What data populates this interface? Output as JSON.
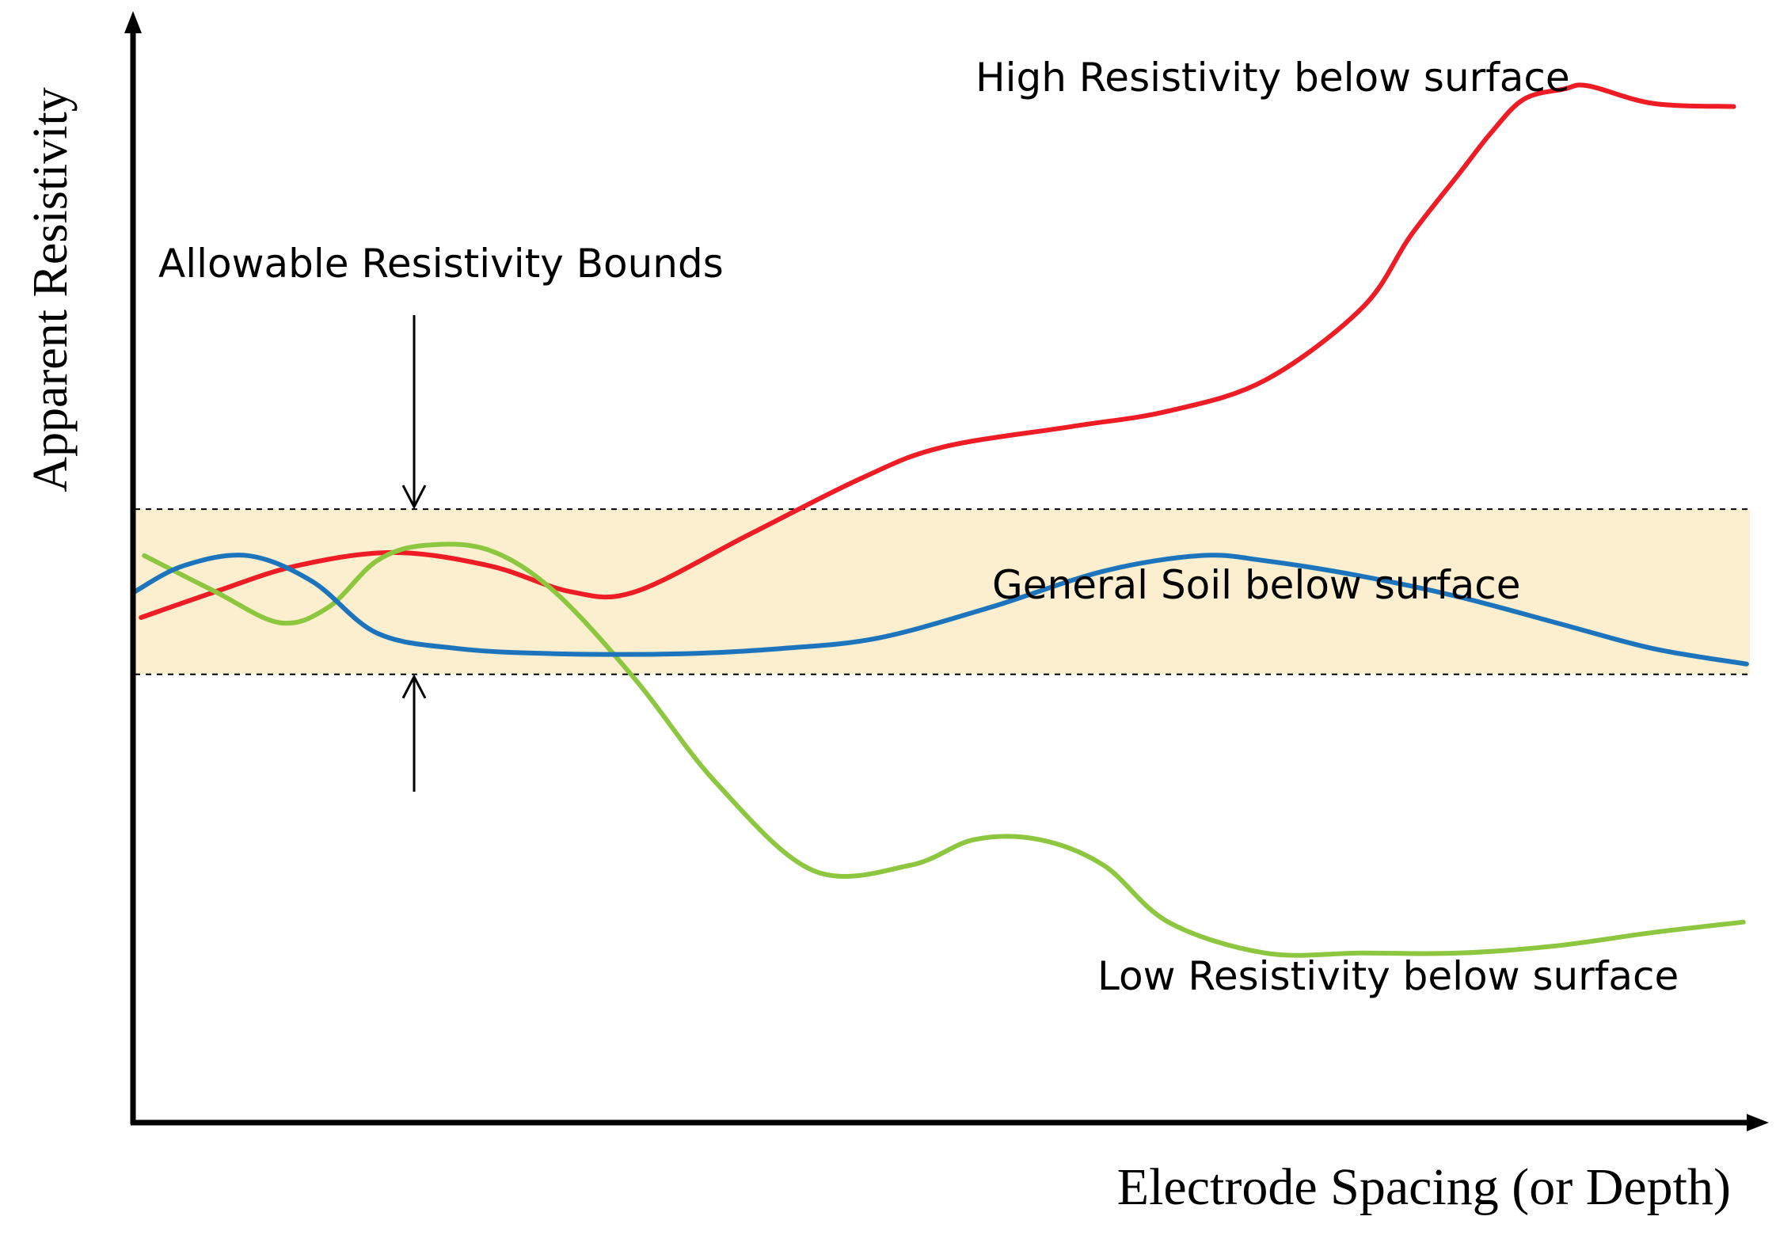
{
  "chart_data": {
    "type": "line",
    "title": "",
    "xlabel": "Electrode Spacing (or Depth)",
    "ylabel": "Apparent Resistivity",
    "xlim": [
      0,
      100
    ],
    "ylim": [
      0,
      100
    ],
    "grid": false,
    "band": {
      "label": "Allowable Resistivity Bounds",
      "lower": 43.5,
      "upper": 59.5,
      "color": "#fcefcf"
    },
    "series": [
      {
        "name": "High Resistivity below surface",
        "color": "#ee1c24",
        "x": [
          0.4,
          5,
          10,
          16,
          22,
          27,
          31,
          38,
          45,
          50,
          58,
          64,
          70,
          76,
          79,
          82,
          84,
          86,
          88.5,
          90,
          94,
          99
        ],
        "y": [
          49,
          51.5,
          54,
          55.3,
          54,
          51.5,
          51.5,
          57,
          62.5,
          65.5,
          67.5,
          69,
          72,
          79,
          86,
          92,
          96,
          99.2,
          100.2,
          100.5,
          98.8,
          98.5
        ]
      },
      {
        "name": "General Soil below surface",
        "color": "#1c75bc",
        "x": [
          0,
          3,
          7,
          11,
          15,
          20,
          26,
          34,
          40,
          46,
          53,
          60,
          66,
          70,
          76,
          82,
          88,
          94,
          99.8
        ],
        "y": [
          51.5,
          54,
          55,
          52.5,
          47.5,
          46,
          45.5,
          45.5,
          46,
          47,
          50,
          53.5,
          55,
          54.5,
          53,
          51,
          48.5,
          46,
          44.5
        ]
      },
      {
        "name": "Low Resistivity below surface",
        "color": "#8dc63f",
        "x": [
          0.6,
          5,
          9,
          12,
          15,
          18,
          22,
          26,
          31,
          36,
          42,
          48,
          52,
          56,
          60,
          64,
          70,
          76,
          82,
          88,
          94,
          99.6
        ],
        "y": [
          55,
          51.5,
          48.5,
          50,
          54.5,
          56,
          55.5,
          51.5,
          43,
          33,
          24.5,
          25,
          27.5,
          27.5,
          25,
          19.5,
          16.5,
          16.5,
          16.5,
          17.2,
          18.5,
          19.5
        ]
      }
    ],
    "annotations": [
      {
        "text": "High Resistivity below surface",
        "series": 0
      },
      {
        "text": "General Soil below surface",
        "series": 1
      },
      {
        "text": "Low Resistivity below surface",
        "series": 2
      },
      {
        "text": "Allowable Resistivity Bounds",
        "series": -1
      }
    ]
  }
}
